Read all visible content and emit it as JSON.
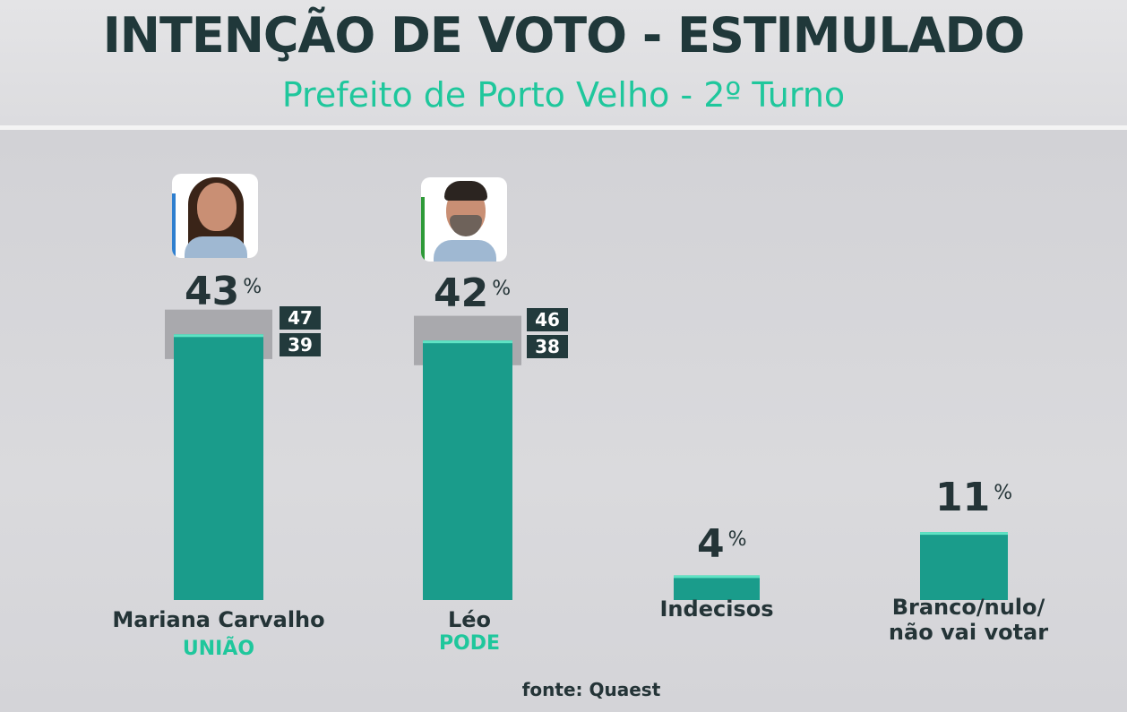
{
  "header": {
    "title": "INTENÇÃO DE VOTO - ESTIMULADO",
    "subtitle": "Prefeito de Porto Velho - 2º Turno"
  },
  "colors": {
    "bar": "#1a9c8b",
    "error_band": "#a9a9ad",
    "title_text": "#20383a",
    "subtitle_text": "#1fc79c",
    "margin_box": "#223a3c",
    "accent_uniao": "#2f7fcf",
    "accent_pode": "#2e9a38"
  },
  "candidates": [
    {
      "name": "Mariana Carvalho",
      "party": "UNIÃO",
      "value": "43",
      "pct": "%",
      "upper": "47",
      "lower": "39",
      "avatar_icon": "candidate-photo-icon"
    },
    {
      "name": "Léo",
      "party": "PODE",
      "value": "42",
      "pct": "%",
      "upper": "46",
      "lower": "38",
      "avatar_icon": "candidate-photo-icon"
    }
  ],
  "others": [
    {
      "label": "Indecisos",
      "value": "4",
      "pct": "%"
    },
    {
      "label_line1": "Branco/nulo/",
      "label_line2": "não vai votar",
      "value": "11",
      "pct": "%"
    }
  ],
  "source": "fonte: Quaest",
  "chart_data": {
    "type": "bar",
    "title": "INTENÇÃO DE VOTO - ESTIMULADO",
    "subtitle": "Prefeito de Porto Velho - 2º Turno",
    "categories": [
      "Mariana Carvalho",
      "Léo",
      "Indecisos",
      "Branco/nulo/não vai votar"
    ],
    "values": [
      43,
      42,
      4,
      11
    ],
    "unit": "%",
    "error_range": [
      [
        39,
        47
      ],
      [
        38,
        46
      ],
      null,
      null
    ],
    "party": [
      "UNIÃO",
      "PODE",
      "",
      ""
    ],
    "ylim": [
      0,
      47
    ],
    "grid": false,
    "source": "fonte: Quaest"
  }
}
